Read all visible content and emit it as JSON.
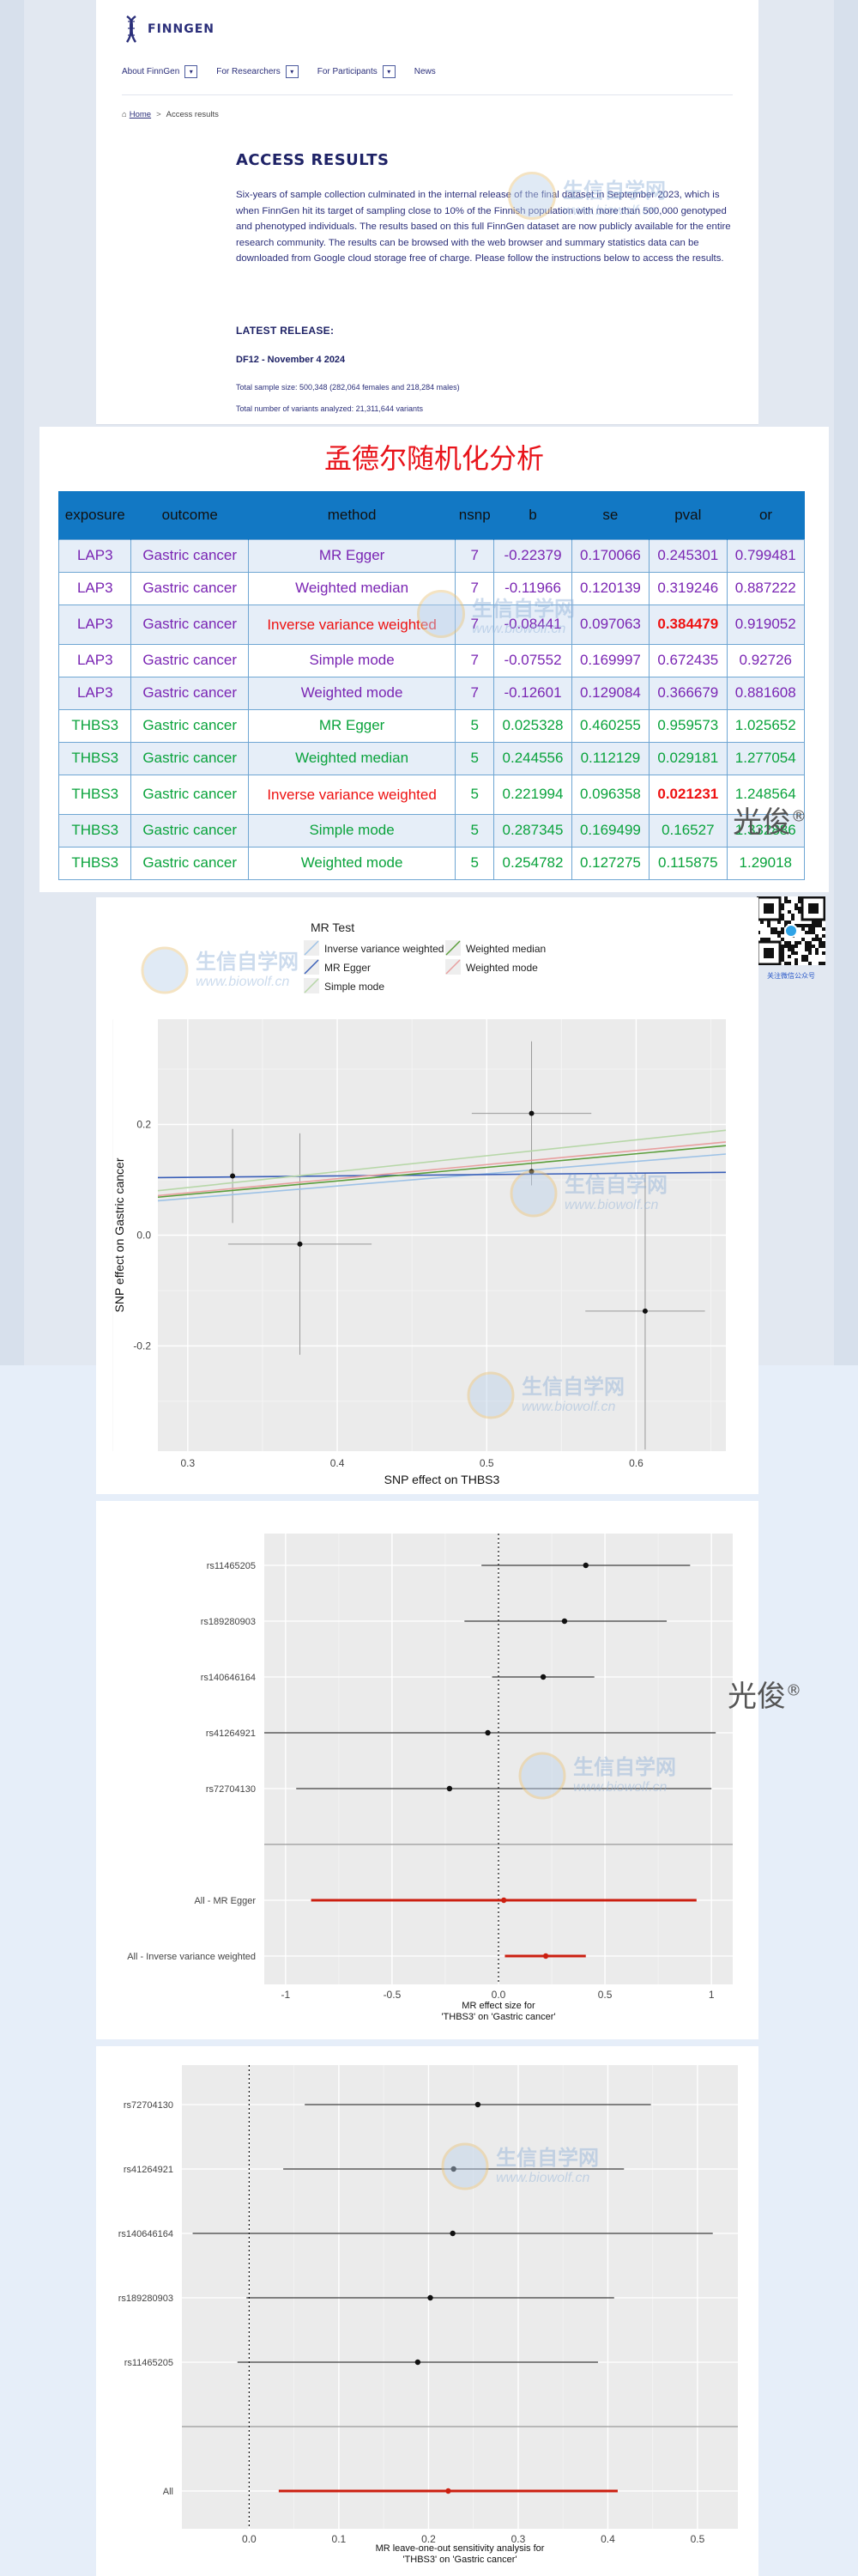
{
  "finngen": {
    "logo_text": "FINNGEN",
    "nav": [
      {
        "label": "About FinnGen",
        "has_dropdown": true
      },
      {
        "label": "For Researchers",
        "has_dropdown": true
      },
      {
        "label": "For Participants",
        "has_dropdown": true
      },
      {
        "label": "News",
        "has_dropdown": false
      }
    ],
    "breadcrumb": {
      "home": "Home",
      "current": "Access results"
    },
    "title": "ACCESS RESULTS",
    "paragraph": "Six-years of sample collection culminated in the internal release of the final dataset in September 2023, which is when FinnGen hit its target of sampling close to 10% of the Finnish population with more than 500,000 genotyped and phenotyped individuals. The results based on this full FinnGen dataset are now publicly available for the entire research community. The results can be browsed with the web browser and summary statistics data can be downloaded from Google cloud storage free of charge. Please follow the instructions below to access the results.",
    "latest_release_heading": "LATEST RELEASE:",
    "release_name": "DF12 - November 4 2024",
    "sample_size": "Total sample size: 500,348 (282,064 females and 218,284 males)",
    "variants": "Total number of variants analyzed: 21,311,644 variants"
  },
  "mr_table": {
    "title": "孟德尔随机化分析",
    "columns": [
      "exposure",
      "outcome",
      "method",
      "nsnp",
      "b",
      "se",
      "pval",
      "or"
    ],
    "rows": [
      [
        "LAP3",
        "Gastric cancer",
        "MR Egger",
        "7",
        "-0.22379",
        "0.170066",
        "0.245301",
        "0.799481"
      ],
      [
        "LAP3",
        "Gastric cancer",
        "Weighted median",
        "7",
        "-0.11966",
        "0.120139",
        "0.319246",
        "0.887222"
      ],
      [
        "LAP3",
        "Gastric cancer",
        "Inverse variance weighted",
        "7",
        "-0.08441",
        "0.097063",
        "0.384479",
        "0.919052"
      ],
      [
        "LAP3",
        "Gastric cancer",
        "Simple mode",
        "7",
        "-0.07552",
        "0.169997",
        "0.672435",
        "0.92726"
      ],
      [
        "LAP3",
        "Gastric cancer",
        "Weighted mode",
        "7",
        "-0.12601",
        "0.129084",
        "0.366679",
        "0.881608"
      ],
      [
        "THBS3",
        "Gastric cancer",
        "MR Egger",
        "5",
        "0.025328",
        "0.460255",
        "0.959573",
        "1.025652"
      ],
      [
        "THBS3",
        "Gastric cancer",
        "Weighted median",
        "5",
        "0.244556",
        "0.112129",
        "0.029181",
        "1.277054"
      ],
      [
        "THBS3",
        "Gastric cancer",
        "Inverse variance weighted",
        "5",
        "0.221994",
        "0.096358",
        "0.021231",
        "1.248564"
      ],
      [
        "THBS3",
        "Gastric cancer",
        "Simple mode",
        "5",
        "0.287345",
        "0.169499",
        "0.16527",
        "1.332886"
      ],
      [
        "THBS3",
        "Gastric cancer",
        "Weighted mode",
        "5",
        "0.254782",
        "0.127275",
        "0.115875",
        "1.29018"
      ]
    ]
  },
  "brand_mark": {
    "text": "光俊",
    "symbol": "®"
  },
  "watermark": {
    "cn": "生信自学网",
    "url": "www.biowolf.cn"
  },
  "qr": {
    "caption": "关注微信公众号"
  },
  "colors": {
    "table_header": "#1278c4",
    "lap3_text": "#7a25b3",
    "thbs3_text": "#0aa33c",
    "highlight": "#ee1111",
    "title_red": "#e8131a",
    "forest_red": "#cc1f10"
  },
  "chart_data": [
    {
      "type": "scatter",
      "title": "",
      "legend_title": "MR Test",
      "legend_placement": "top",
      "legend": [
        "Inverse variance weighted",
        "MR Egger",
        "Simple mode",
        "Weighted median",
        "Weighted mode"
      ],
      "xlabel": "SNP effect on THBS3",
      "ylabel": "SNP effect on Gastric cancer",
      "xlim": [
        0.28,
        0.66
      ],
      "ylim": [
        -0.39,
        0.39
      ],
      "x_ticks": [
        0.3,
        0.4,
        0.5,
        0.6
      ],
      "y_ticks": [
        -0.2,
        0.0,
        0.2
      ],
      "grid": true,
      "points": [
        {
          "x": 0.33,
          "y": 0.107,
          "xerr": 0.0,
          "yerr": 0.085
        },
        {
          "x": 0.375,
          "y": -0.016,
          "xerr": 0.048,
          "yerr": 0.2
        },
        {
          "x": 0.53,
          "y": 0.22,
          "xerr": 0.04,
          "yerr": 0.13
        },
        {
          "x": 0.53,
          "y": 0.115,
          "xerr": 0.0,
          "yerr": 0.0
        },
        {
          "x": 0.606,
          "y": -0.137,
          "xerr": 0.04,
          "yerr": 0.25
        }
      ],
      "lines": [
        {
          "name": "Inverse variance weighted",
          "intercept": 0.0,
          "slope": 0.222,
          "color": "#9dc2e6"
        },
        {
          "name": "MR Egger",
          "intercept": 0.097,
          "slope": 0.025,
          "color": "#3a5fb8"
        },
        {
          "name": "Simple mode",
          "intercept": 0.0,
          "slope": 0.287,
          "color": "#b7d7a8"
        },
        {
          "name": "Weighted median",
          "intercept": 0.0,
          "slope": 0.245,
          "color": "#5b9e3c"
        },
        {
          "name": "Weighted mode",
          "intercept": 0.0,
          "slope": 0.255,
          "color": "#e8a0a0"
        }
      ]
    },
    {
      "type": "scatter",
      "subtype": "forest",
      "xlabel": "MR effect size for\n'THBS3' on 'Gastric cancer'",
      "xlim": [
        -1.1,
        1.1
      ],
      "x_ticks": [
        -1.0,
        -0.5,
        0.0,
        0.5,
        1.0
      ],
      "grid": true,
      "rows": [
        {
          "label": "rs11465205",
          "b": 0.41,
          "lo": -0.08,
          "hi": 0.9,
          "highlight": false
        },
        {
          "label": "rs189280903",
          "b": 0.31,
          "lo": -0.16,
          "hi": 0.79,
          "highlight": false
        },
        {
          "label": "rs140646164",
          "b": 0.21,
          "lo": -0.03,
          "hi": 0.45,
          "highlight": false
        },
        {
          "label": "rs41264921",
          "b": -0.05,
          "lo": -1.12,
          "hi": 1.02,
          "highlight": false
        },
        {
          "label": "rs72704130",
          "b": -0.23,
          "lo": -0.95,
          "hi": 1.0,
          "highlight": false
        },
        {
          "label": "All - MR Egger",
          "b": 0.025,
          "lo": -0.88,
          "hi": 0.93,
          "highlight": true
        },
        {
          "label": "All - Inverse variance weighted",
          "b": 0.222,
          "lo": 0.03,
          "hi": 0.41,
          "highlight": true
        }
      ]
    },
    {
      "type": "scatter",
      "subtype": "forest",
      "xlabel": "MR leave-one-out sensitivity analysis for\n'THBS3' on 'Gastric cancer'",
      "xlim": [
        -0.075,
        0.545
      ],
      "x_ticks": [
        0.0,
        0.1,
        0.2,
        0.3,
        0.4,
        0.5
      ],
      "grid": true,
      "rows": [
        {
          "label": "rs72704130",
          "b": 0.255,
          "lo": 0.062,
          "hi": 0.448,
          "highlight": false
        },
        {
          "label": "rs41264921",
          "b": 0.228,
          "lo": 0.038,
          "hi": 0.418,
          "highlight": false
        },
        {
          "label": "rs140646164",
          "b": 0.227,
          "lo": -0.063,
          "hi": 0.517,
          "highlight": false
        },
        {
          "label": "rs189280903",
          "b": 0.202,
          "lo": -0.003,
          "hi": 0.407,
          "highlight": false
        },
        {
          "label": "rs11465205",
          "b": 0.188,
          "lo": -0.013,
          "hi": 0.389,
          "highlight": false
        },
        {
          "label": "All",
          "b": 0.222,
          "lo": 0.033,
          "hi": 0.411,
          "highlight": true
        }
      ]
    }
  ]
}
